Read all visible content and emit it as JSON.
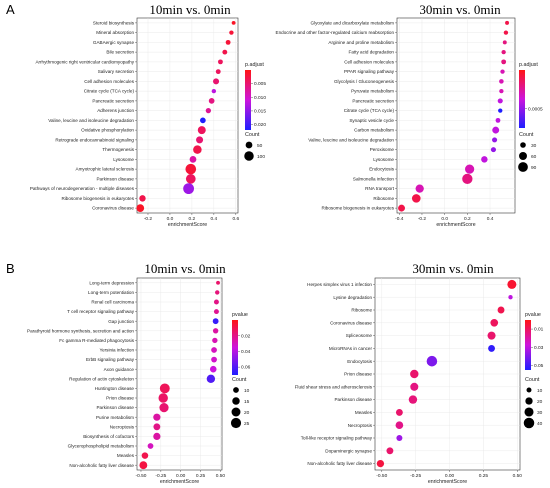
{
  "chart_data": [
    {
      "panel": "A",
      "type": "scatter",
      "title": "10min vs. 0min",
      "xlabel": "enrichmentScore",
      "xlim": [
        -0.3,
        0.62
      ],
      "xticks": [
        -0.2,
        0.0,
        0.2,
        0.4,
        0.6
      ],
      "xtick_labels": [
        "-0.2",
        "0.0",
        "0.2",
        "0.4",
        "0.6"
      ],
      "color_legend_title": "p.adjust",
      "color_range": [
        0.0,
        0.022
      ],
      "color_ticks": [
        0.005,
        0.01,
        0.015,
        0.02
      ],
      "color_tick_labels": [
        "0.005",
        "0.010",
        "0.015",
        "0.020"
      ],
      "size_legend_title": "Count",
      "size_range": [
        10,
        130
      ],
      "size_ticks": [
        50,
        100
      ],
      "size_tick_labels": [
        "50",
        "100"
      ],
      "terms": [
        {
          "term": "Steroid biosynthesis",
          "x": 0.58,
          "count": 15,
          "p": 0.001
        },
        {
          "term": "Mineral absorption",
          "x": 0.56,
          "count": 20,
          "p": 0.002
        },
        {
          "term": "GABAergic synapse",
          "x": 0.53,
          "count": 25,
          "p": 0.002
        },
        {
          "term": "Bile secretion",
          "x": 0.5,
          "count": 25,
          "p": 0.003
        },
        {
          "term": "Arrhythmogenic right ventricular cardiomyopathy",
          "x": 0.46,
          "count": 25,
          "p": 0.004
        },
        {
          "term": "Salivary secretion",
          "x": 0.44,
          "count": 25,
          "p": 0.004
        },
        {
          "term": "Cell adhesion molecules",
          "x": 0.42,
          "count": 40,
          "p": 0.005
        },
        {
          "term": "Citrate cycle (TCA cycle)",
          "x": 0.4,
          "count": 20,
          "p": 0.012
        },
        {
          "term": "Pancreatic secretion",
          "x": 0.38,
          "count": 35,
          "p": 0.006
        },
        {
          "term": "Adherens junction",
          "x": 0.35,
          "count": 30,
          "p": 0.007
        },
        {
          "term": "Valine, leucine and isoleucine degradation",
          "x": 0.3,
          "count": 35,
          "p": 0.022
        },
        {
          "term": "Oxidative phosphorylation",
          "x": 0.29,
          "count": 70,
          "p": 0.004
        },
        {
          "term": "Retrograde endocannabinoid signaling",
          "x": 0.27,
          "count": 55,
          "p": 0.005
        },
        {
          "term": "Thermogenesis",
          "x": 0.25,
          "count": 80,
          "p": 0.003
        },
        {
          "term": "Lysosome",
          "x": 0.21,
          "count": 50,
          "p": 0.008
        },
        {
          "term": "Amyotrophic lateral sclerosis",
          "x": 0.19,
          "count": 125,
          "p": 0.002
        },
        {
          "term": "Parkinson disease",
          "x": 0.19,
          "count": 105,
          "p": 0.004
        },
        {
          "term": "Pathways of neurodegeneration - multiple diseases",
          "x": 0.17,
          "count": 130,
          "p": 0.014
        },
        {
          "term": "Ribosome biogenesis in eukaryotes",
          "x": -0.25,
          "count": 45,
          "p": 0.003
        },
        {
          "term": "Coronavirus disease",
          "x": -0.27,
          "count": 65,
          "p": 0.001
        }
      ]
    },
    {
      "panel": "",
      "type": "scatter",
      "title": "30min vs. 0min",
      "xlabel": "enrichmentScore",
      "xlim": [
        -0.42,
        0.62
      ],
      "xticks": [
        -0.4,
        -0.2,
        0.0,
        0.2,
        0.4
      ],
      "xtick_labels": [
        "-0.4",
        "-0.2",
        "0.0",
        "0.2",
        "0.4"
      ],
      "color_legend_title": "p.adjust",
      "color_range": [
        0.0,
        0.00075
      ],
      "color_ticks": [
        0.0005
      ],
      "color_tick_labels": [
        "0.0005"
      ],
      "size_legend_title": "Count",
      "size_range": [
        10,
        110
      ],
      "size_ticks": [
        30,
        60,
        90
      ],
      "size_tick_labels": [
        "30",
        "60",
        "90"
      ],
      "terms": [
        {
          "term": "Glyoxylate and dicarboxylate metabolism",
          "x": 0.55,
          "count": 15,
          "p": 0.0001
        },
        {
          "term": "Endocrine and other factor-regulated calcium reabsorption",
          "x": 0.54,
          "count": 18,
          "p": 0.0001
        },
        {
          "term": "Arginine and proline metabolism",
          "x": 0.53,
          "count": 15,
          "p": 0.0002
        },
        {
          "term": "Fatty acid degradation",
          "x": 0.52,
          "count": 18,
          "p": 0.0002
        },
        {
          "term": "Cell adhesion molecules",
          "x": 0.52,
          "count": 22,
          "p": 0.0002
        },
        {
          "term": "PPAR signaling pathway",
          "x": 0.51,
          "count": 18,
          "p": 0.0003
        },
        {
          "term": "Glycolysis / Gluconeogenesis",
          "x": 0.5,
          "count": 20,
          "p": 0.0003
        },
        {
          "term": "Pyruvate metabolism",
          "x": 0.5,
          "count": 18,
          "p": 0.0003
        },
        {
          "term": "Pancreatic secretion",
          "x": 0.49,
          "count": 25,
          "p": 0.0004
        },
        {
          "term": "Citrate cycle (TCA cycle)",
          "x": 0.49,
          "count": 18,
          "p": 0.00075
        },
        {
          "term": "Synaptic vesicle cycle",
          "x": 0.47,
          "count": 22,
          "p": 0.0004
        },
        {
          "term": "Carbon metabolism",
          "x": 0.45,
          "count": 45,
          "p": 0.0004
        },
        {
          "term": "Valine, leucine and isoleucine degradation",
          "x": 0.44,
          "count": 25,
          "p": 0.0005
        },
        {
          "term": "Peroxisome",
          "x": 0.43,
          "count": 25,
          "p": 0.0005
        },
        {
          "term": "Lysosome",
          "x": 0.35,
          "count": 40,
          "p": 0.0004
        },
        {
          "term": "Endocytosis",
          "x": 0.22,
          "count": 80,
          "p": 0.0003
        },
        {
          "term": "Salmonella infection",
          "x": 0.2,
          "count": 100,
          "p": 0.0002
        },
        {
          "term": "RNA transport",
          "x": -0.22,
          "count": 65,
          "p": 0.0003
        },
        {
          "term": "Ribosome",
          "x": -0.25,
          "count": 70,
          "p": 0.0001
        },
        {
          "term": "Ribosome biogenesis in eukaryotes",
          "x": -0.38,
          "count": 45,
          "p": 0.0001
        }
      ]
    },
    {
      "panel": "B",
      "type": "scatter",
      "title": "10min vs. 0min",
      "xlabel": "enrichmentScore",
      "xlim": [
        -0.55,
        0.52
      ],
      "xticks": [
        -0.5,
        -0.25,
        0.0,
        0.25,
        0.5
      ],
      "xtick_labels": [
        "-0.50",
        "-0.25",
        "0.00",
        "0.25",
        "0.50"
      ],
      "color_legend_title": "pvalue",
      "color_range": [
        0.0,
        0.07
      ],
      "color_ticks": [
        0.02,
        0.04,
        0.06
      ],
      "color_tick_labels": [
        "0.02",
        "0.04",
        "0.06"
      ],
      "size_legend_title": "Count",
      "size_range": [
        5,
        28
      ],
      "size_ticks": [
        10,
        15,
        20,
        25
      ],
      "size_tick_labels": [
        "10",
        "15",
        "20",
        "25"
      ],
      "terms": [
        {
          "term": "Long-term depression",
          "x": 0.47,
          "count": 6,
          "p": 0.015
        },
        {
          "term": "Long-term potentiation",
          "x": 0.46,
          "count": 7,
          "p": 0.018
        },
        {
          "term": "Renal cell carcinoma",
          "x": 0.45,
          "count": 8,
          "p": 0.02
        },
        {
          "term": "T cell receptor signaling pathway",
          "x": 0.45,
          "count": 8,
          "p": 0.022
        },
        {
          "term": "Gap junction",
          "x": 0.44,
          "count": 10,
          "p": 0.065
        },
        {
          "term": "Parathyroid hormone synthesis, secretion and action",
          "x": 0.44,
          "count": 9,
          "p": 0.025
        },
        {
          "term": "Fc gamma R-mediated phagocytosis",
          "x": 0.43,
          "count": 9,
          "p": 0.028
        },
        {
          "term": "Yersinia infection",
          "x": 0.42,
          "count": 10,
          "p": 0.03
        },
        {
          "term": "ErbB signaling pathway",
          "x": 0.42,
          "count": 10,
          "p": 0.032
        },
        {
          "term": "Axon guidance",
          "x": 0.41,
          "count": 12,
          "p": 0.035
        },
        {
          "term": "Regulation of actin cytoskeleton",
          "x": 0.38,
          "count": 18,
          "p": 0.06
        },
        {
          "term": "Huntington disease",
          "x": -0.2,
          "count": 24,
          "p": 0.012
        },
        {
          "term": "Prion disease",
          "x": -0.22,
          "count": 22,
          "p": 0.014
        },
        {
          "term": "Parkinson disease",
          "x": -0.21,
          "count": 21,
          "p": 0.016
        },
        {
          "term": "Purine metabolism",
          "x": -0.3,
          "count": 14,
          "p": 0.025
        },
        {
          "term": "Necroptosis",
          "x": -0.3,
          "count": 13,
          "p": 0.02
        },
        {
          "term": "Biosynthesis of cofactors",
          "x": -0.3,
          "count": 14,
          "p": 0.025
        },
        {
          "term": "Glycerophospholipid metabolism",
          "x": -0.38,
          "count": 10,
          "p": 0.03
        },
        {
          "term": "Measles",
          "x": -0.45,
          "count": 12,
          "p": 0.01
        },
        {
          "term": "Non-alcoholic fatty liver disease",
          "x": -0.47,
          "count": 16,
          "p": 0.008
        }
      ]
    },
    {
      "panel": "",
      "type": "scatter",
      "title": "30min vs. 0min",
      "xlabel": "enrichmentScore",
      "xlim": [
        -0.55,
        0.52
      ],
      "xticks": [
        -0.5,
        -0.25,
        0.0,
        0.25,
        0.5
      ],
      "xtick_labels": [
        "-0.50",
        "-0.25",
        "0.00",
        "0.25",
        "0.50"
      ],
      "color_legend_title": "pvalue",
      "color_range": [
        0.0,
        0.055
      ],
      "color_ticks": [
        0.01,
        0.03,
        0.05
      ],
      "color_tick_labels": [
        "0.01",
        "0.03",
        "0.05"
      ],
      "size_legend_title": "Count",
      "size_range": [
        5,
        42
      ],
      "size_ticks": [
        10,
        20,
        30,
        40
      ],
      "size_tick_labels": [
        "10",
        "20",
        "30",
        "40"
      ],
      "terms": [
        {
          "term": "Herpes simplex virus 1 infection",
          "x": 0.46,
          "count": 30,
          "p": 0.004
        },
        {
          "term": "Lysine degradation",
          "x": 0.45,
          "count": 8,
          "p": 0.03
        },
        {
          "term": "Ribosome",
          "x": 0.38,
          "count": 18,
          "p": 0.008
        },
        {
          "term": "Coronavirus disease",
          "x": 0.33,
          "count": 22,
          "p": 0.01
        },
        {
          "term": "Spliceosome",
          "x": 0.31,
          "count": 24,
          "p": 0.012
        },
        {
          "term": "MicroRNAs in cancer",
          "x": 0.31,
          "count": 18,
          "p": 0.052
        },
        {
          "term": "Endocytosis",
          "x": -0.13,
          "count": 40,
          "p": 0.04
        },
        {
          "term": "Prion disease",
          "x": -0.26,
          "count": 26,
          "p": 0.012
        },
        {
          "term": "Fluid shear stress and atherosclerosis",
          "x": -0.26,
          "count": 24,
          "p": 0.015
        },
        {
          "term": "Parkinson disease",
          "x": -0.27,
          "count": 26,
          "p": 0.014
        },
        {
          "term": "Measles",
          "x": -0.37,
          "count": 18,
          "p": 0.012
        },
        {
          "term": "Necroptosis",
          "x": -0.37,
          "count": 22,
          "p": 0.016
        },
        {
          "term": "Toll-like receptor signaling pathway",
          "x": -0.37,
          "count": 14,
          "p": 0.035
        },
        {
          "term": "Dopaminergic synapse",
          "x": -0.44,
          "count": 18,
          "p": 0.012
        },
        {
          "term": "Non-alcoholic fatty liver disease",
          "x": -0.51,
          "count": 20,
          "p": 0.006
        }
      ]
    }
  ]
}
